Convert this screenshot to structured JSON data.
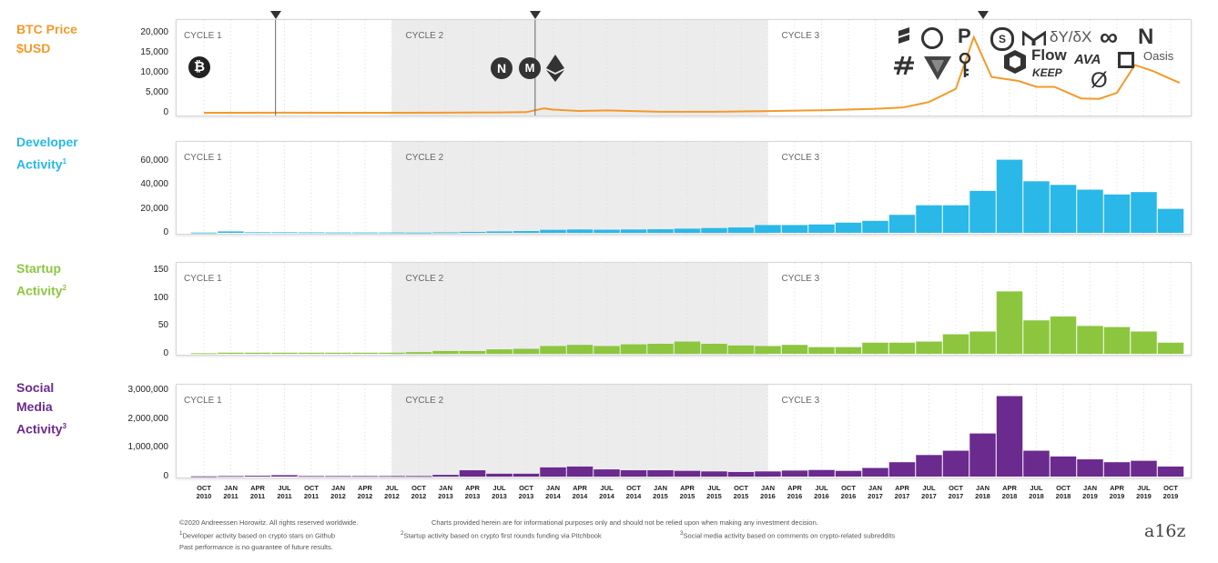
{
  "labels": {
    "price": [
      "BTC Price",
      "$USD"
    ],
    "dev": [
      "Developer",
      "Activity",
      "1"
    ],
    "startup": [
      "Startup",
      "Activity",
      "2"
    ],
    "social": [
      "Social",
      "Media",
      "Activity",
      "3"
    ]
  },
  "cycles": [
    "CYCLE 1",
    "CYCLE 2",
    "CYCLE 3"
  ],
  "colors": {
    "price": "#f39a2a",
    "dev": "#29b8e8",
    "startup": "#8cc63f",
    "social": "#6b2a8e",
    "shade": "#ececec"
  },
  "footer": {
    "copyright": "©2020 Andreessen Horowitz. All rights reserved worldwide.",
    "disclaimer": "Charts provided herein are for informational purposes only and should not be relied upon when making any investment decision.",
    "note1": "Developer activity based on crypto stars on Github",
    "note2": "Startup activity based on crypto first rounds funding via Pitchbook",
    "note3": "Social media activity based on comments on crypto-related subreddits",
    "past": "Past performance is no guarantee of future results.",
    "brand": "a16z"
  },
  "logos": {
    "flow": "Flow",
    "keep": "KEEP",
    "ava": "AVA",
    "oasis": "Oasis",
    "dydx": "δY/δX",
    "nkey": "N"
  },
  "chart_data": {
    "type": "bar",
    "x": [
      "OCT 2010",
      "JAN 2011",
      "APR 2011",
      "JUL 2011",
      "OCT 2011",
      "JAN 2012",
      "APR 2012",
      "JUL 2012",
      "OCT 2012",
      "JAN 2013",
      "APR 2013",
      "JUL 2013",
      "OCT 2013",
      "JAN 2014",
      "APR 2014",
      "JUL 2014",
      "OCT 2014",
      "JAN 2015",
      "APR 2015",
      "JUL 2015",
      "OCT 2015",
      "JAN 2016",
      "APR 2016",
      "JUL 2016",
      "OCT 2016",
      "JAN 2017",
      "APR 2017",
      "JUL 2017",
      "OCT 2017",
      "JAN 2018",
      "APR 2018",
      "JUL 2018",
      "OCT 2018",
      "JAN 2019",
      "APR 2019",
      "JUL 2019",
      "OCT 2019"
    ],
    "cycle_bounds": [
      "JUL 2012",
      "JAN 2016"
    ],
    "charts": [
      {
        "key": "price",
        "type": "line",
        "yticks": [
          "20,000",
          "15,000",
          "10,000",
          "5,000",
          "0"
        ],
        "ylim": [
          0,
          21000
        ],
        "series": {
          "x": [
            "OCT 2010",
            "JAN 2011",
            "JUL 2011",
            "JAN 2012",
            "JUL 2012",
            "JAN 2013",
            "JUL 2013",
            "OCT 2013",
            "DEC 2013",
            "JAN 2014",
            "APR 2014",
            "JUL 2014",
            "JAN 2015",
            "JUL 2015",
            "JAN 2016",
            "JUL 2016",
            "JAN 2017",
            "APR 2017",
            "JUL 2017",
            "OCT 2017",
            "DEC 2017",
            "FEB 2018",
            "MAY 2018",
            "JUL 2018",
            "SEP 2018",
            "DEC 2018",
            "FEB 2019",
            "APR 2019",
            "JUN 2019",
            "AUG 2019",
            "OCT 2019",
            "NOV 2019"
          ],
          "values": [
            0,
            0,
            14,
            5,
            7,
            15,
            90,
            150,
            1100,
            800,
            450,
            600,
            250,
            260,
            430,
            650,
            1000,
            1300,
            2700,
            6000,
            19000,
            9000,
            8000,
            6500,
            6500,
            3600,
            3500,
            5000,
            12000,
            10500,
            8500,
            7500
          ]
        },
        "markers": [
          "JUN 2011",
          "NOV 2013",
          "JAN 2018"
        ]
      },
      {
        "key": "dev",
        "type": "bar",
        "yticks": [
          "60,000",
          "40,000",
          "20,000",
          "0"
        ],
        "ylim": [
          0,
          66000
        ],
        "values": [
          200,
          1200,
          500,
          500,
          400,
          300,
          300,
          300,
          200,
          400,
          800,
          1200,
          1500,
          2500,
          2800,
          2600,
          2800,
          3000,
          3500,
          4000,
          4500,
          6500,
          6500,
          7000,
          8500,
          10000,
          15000,
          23000,
          23000,
          35000,
          61000,
          43000,
          40000,
          36000,
          32000,
          34000,
          20000
        ]
      },
      {
        "key": "startup",
        "type": "bar",
        "yticks": [
          "150",
          "100",
          "50",
          "0"
        ],
        "ylim": [
          0,
          155
        ],
        "values": [
          1,
          2,
          2,
          2,
          2,
          2,
          2,
          2,
          3,
          5,
          5,
          8,
          9,
          14,
          16,
          14,
          17,
          18,
          22,
          18,
          15,
          14,
          16,
          12,
          12,
          20,
          20,
          22,
          35,
          40,
          112,
          60,
          67,
          50,
          48,
          40,
          20
        ]
      },
      {
        "key": "social",
        "type": "bar",
        "yticks": [
          "3,000,000",
          "2,000,000",
          "1,000,000",
          "0"
        ],
        "ylim": [
          0,
          3100000
        ],
        "values": [
          10000,
          20000,
          30000,
          50000,
          20000,
          20000,
          20000,
          20000,
          20000,
          60000,
          220000,
          100000,
          100000,
          320000,
          350000,
          250000,
          220000,
          220000,
          200000,
          180000,
          160000,
          180000,
          210000,
          230000,
          200000,
          300000,
          500000,
          750000,
          900000,
          1500000,
          2800000,
          900000,
          700000,
          600000,
          500000,
          550000,
          350000
        ]
      }
    ]
  }
}
